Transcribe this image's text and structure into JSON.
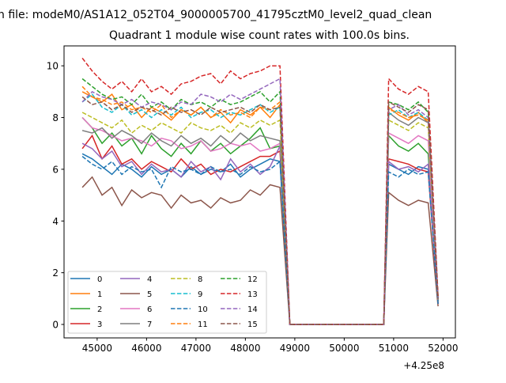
{
  "chart_data": {
    "type": "line",
    "suptitle": "n file: modeM0/AS1A12_052T04_9000005700_41795cztM0_level2_quad_clean",
    "title": "Quadrant 1 module wise count rates with 100.0s bins.",
    "xlabel": "",
    "ylabel": "",
    "x_offset_label": "+4.25e8",
    "xlim": [
      44330,
      52250
    ],
    "ylim": [
      -0.52,
      10.77
    ],
    "xticks": [
      45000,
      46000,
      47000,
      48000,
      49000,
      50000,
      51000,
      52000
    ],
    "xtick_labels": [
      "45000",
      "46000",
      "47000",
      "48000",
      "49000",
      "50000",
      "51000",
      "52000"
    ],
    "yticks": [
      0,
      2,
      4,
      6,
      8,
      10
    ],
    "ytick_labels": [
      "0",
      "2",
      "4",
      "6",
      "8",
      "10"
    ],
    "grid": false,
    "legend_placement": "lower-left",
    "legend_columns": 4,
    "x": [
      44700,
      44900,
      45100,
      45300,
      45500,
      45700,
      45900,
      46100,
      46300,
      46500,
      46700,
      46900,
      47100,
      47300,
      47500,
      47700,
      47900,
      48100,
      48300,
      48500,
      48700,
      48900,
      50800,
      50900,
      51100,
      51300,
      51500,
      51700,
      51900
    ],
    "series": [
      {
        "name": "0",
        "color": "#1f77b4",
        "dash": false,
        "values": [
          6.6,
          6.4,
          6.1,
          5.8,
          6.2,
          6.0,
          5.7,
          6.1,
          5.8,
          6.0,
          5.7,
          6.1,
          5.8,
          6.0,
          5.9,
          6.2,
          5.7,
          6.0,
          6.2,
          6.4,
          6.3,
          0,
          0,
          6.2,
          6.0,
          5.8,
          6.1,
          6.0,
          0.9
        ]
      },
      {
        "name": "1",
        "color": "#ff7f0e",
        "dash": false,
        "values": [
          9.0,
          8.8,
          8.6,
          8.9,
          8.3,
          8.5,
          8.0,
          8.4,
          8.2,
          7.9,
          8.3,
          8.1,
          8.4,
          8.0,
          8.2,
          7.8,
          8.3,
          8.1,
          8.4,
          8.0,
          8.5,
          0,
          0,
          8.4,
          8.1,
          7.9,
          8.2,
          7.8,
          1.0
        ]
      },
      {
        "name": "2",
        "color": "#2ca02c",
        "dash": false,
        "values": [
          8.0,
          7.6,
          7.0,
          7.4,
          6.9,
          7.2,
          6.6,
          7.3,
          6.8,
          6.5,
          7.0,
          6.6,
          7.1,
          6.7,
          7.0,
          6.6,
          6.9,
          7.2,
          7.6,
          6.8,
          6.9,
          0,
          0,
          7.3,
          6.9,
          6.7,
          7.0,
          6.6,
          0.9
        ]
      },
      {
        "name": "3",
        "color": "#d62728",
        "dash": false,
        "values": [
          6.8,
          7.3,
          6.4,
          6.9,
          6.2,
          6.4,
          6.0,
          6.3,
          6.1,
          5.9,
          6.4,
          6.0,
          6.2,
          5.8,
          6.0,
          5.9,
          6.1,
          6.3,
          6.5,
          6.5,
          6.7,
          0,
          0,
          6.4,
          6.3,
          6.2,
          6.0,
          5.9,
          0.8
        ]
      },
      {
        "name": "4",
        "color": "#9467bd",
        "dash": false,
        "values": [
          7.0,
          6.8,
          6.4,
          6.7,
          6.1,
          6.3,
          5.8,
          6.2,
          5.9,
          6.0,
          5.7,
          6.3,
          5.9,
          6.1,
          5.6,
          6.4,
          5.9,
          6.2,
          5.8,
          6.1,
          6.9,
          0,
          0,
          6.3,
          6.0,
          6.1,
          5.9,
          6.2,
          0.8
        ]
      },
      {
        "name": "5",
        "color": "#8c564b",
        "dash": false,
        "values": [
          5.3,
          5.7,
          5.0,
          5.3,
          4.6,
          5.2,
          4.9,
          5.1,
          5.0,
          4.5,
          5.0,
          4.7,
          4.8,
          4.5,
          4.9,
          4.7,
          4.8,
          5.2,
          5.0,
          5.4,
          5.3,
          0,
          0,
          5.1,
          4.8,
          4.6,
          4.8,
          4.7,
          0.7
        ]
      },
      {
        "name": "6",
        "color": "#e377c2",
        "dash": false,
        "values": [
          8.0,
          7.6,
          7.5,
          7.3,
          7.1,
          7.2,
          7.1,
          6.9,
          7.2,
          7.1,
          6.8,
          6.9,
          7.1,
          6.7,
          6.8,
          7.0,
          6.9,
          7.0,
          6.7,
          6.8,
          7.0,
          0,
          0,
          7.4,
          7.2,
          7.0,
          7.3,
          7.1,
          0.9
        ]
      },
      {
        "name": "7",
        "color": "#7f7f7f",
        "dash": false,
        "values": [
          7.5,
          7.4,
          7.6,
          7.2,
          7.5,
          7.3,
          7.0,
          7.4,
          7.1,
          6.9,
          7.3,
          7.0,
          7.2,
          6.9,
          7.3,
          7.0,
          7.4,
          7.1,
          7.3,
          7.2,
          7.1,
          0,
          0,
          8.2,
          7.9,
          7.7,
          8.0,
          7.8,
          0.9
        ]
      },
      {
        "name": "8",
        "color": "#bcbd22",
        "dash": true,
        "values": [
          8.2,
          8.0,
          7.8,
          7.6,
          7.9,
          7.4,
          7.7,
          7.5,
          7.8,
          7.6,
          7.4,
          7.8,
          7.6,
          7.5,
          7.7,
          7.4,
          7.8,
          7.6,
          7.9,
          7.7,
          7.9,
          0,
          0,
          7.9,
          7.7,
          7.5,
          7.8,
          7.6,
          0.9
        ]
      },
      {
        "name": "9",
        "color": "#17becf",
        "dash": true,
        "values": [
          8.6,
          8.9,
          8.4,
          8.2,
          8.5,
          8.1,
          8.3,
          8.0,
          8.3,
          8.1,
          8.4,
          8.0,
          8.2,
          8.3,
          8.0,
          8.2,
          8.1,
          8.3,
          8.5,
          8.2,
          8.4,
          0,
          0,
          8.1,
          8.3,
          8.0,
          8.2,
          7.9,
          1.0
        ]
      },
      {
        "name": "10",
        "color": "#1f77b4",
        "dash": true,
        "values": [
          6.5,
          6.2,
          6.0,
          6.3,
          5.8,
          6.1,
          5.9,
          6.0,
          5.3,
          6.1,
          5.9,
          6.0,
          5.8,
          6.1,
          5.9,
          6.0,
          5.8,
          6.1,
          5.9,
          6.0,
          6.3,
          0,
          0,
          5.9,
          5.7,
          6.0,
          5.8,
          5.9,
          0.8
        ]
      },
      {
        "name": "11",
        "color": "#ff7f0e",
        "dash": true,
        "values": [
          9.2,
          8.8,
          8.7,
          8.5,
          8.6,
          8.3,
          8.4,
          8.2,
          8.5,
          8.0,
          8.3,
          8.1,
          8.4,
          8.0,
          8.3,
          8.1,
          8.2,
          8.0,
          8.4,
          8.3,
          8.6,
          0,
          0,
          8.3,
          8.2,
          8.0,
          8.1,
          7.9,
          1.0
        ]
      },
      {
        "name": "12",
        "color": "#2ca02c",
        "dash": true,
        "values": [
          9.5,
          9.2,
          8.9,
          8.7,
          8.8,
          8.5,
          8.9,
          8.4,
          8.6,
          8.3,
          8.7,
          8.5,
          8.6,
          8.4,
          8.7,
          8.5,
          8.6,
          8.8,
          9.0,
          8.6,
          9.0,
          0,
          0,
          8.6,
          8.5,
          8.3,
          8.6,
          8.2,
          1.0
        ]
      },
      {
        "name": "13",
        "color": "#d62728",
        "dash": true,
        "values": [
          10.3,
          9.8,
          9.4,
          9.1,
          9.4,
          9.0,
          9.5,
          9.0,
          9.2,
          8.9,
          9.3,
          9.4,
          9.6,
          9.7,
          9.3,
          9.8,
          9.5,
          9.7,
          9.8,
          10.0,
          10.0,
          0,
          0,
          9.5,
          9.1,
          8.9,
          9.2,
          9.0,
          1.1
        ]
      },
      {
        "name": "14",
        "color": "#9467bd",
        "dash": true,
        "values": [
          8.6,
          9.0,
          8.8,
          8.7,
          8.5,
          8.7,
          8.4,
          8.6,
          8.5,
          8.3,
          8.6,
          8.5,
          8.9,
          8.8,
          8.6,
          8.9,
          8.7,
          8.9,
          9.1,
          9.3,
          9.5,
          0,
          0,
          8.3,
          8.5,
          8.1,
          8.3,
          8.0,
          1.0
        ]
      },
      {
        "name": "15",
        "color": "#8c564b",
        "dash": true,
        "values": [
          8.8,
          8.5,
          8.6,
          8.3,
          8.5,
          8.2,
          8.4,
          8.3,
          8.1,
          8.4,
          8.2,
          8.3,
          8.1,
          8.4,
          8.2,
          8.3,
          8.4,
          8.2,
          8.5,
          8.3,
          8.4,
          0,
          0,
          8.6,
          8.4,
          8.2,
          8.5,
          8.3,
          1.0
        ]
      }
    ]
  }
}
